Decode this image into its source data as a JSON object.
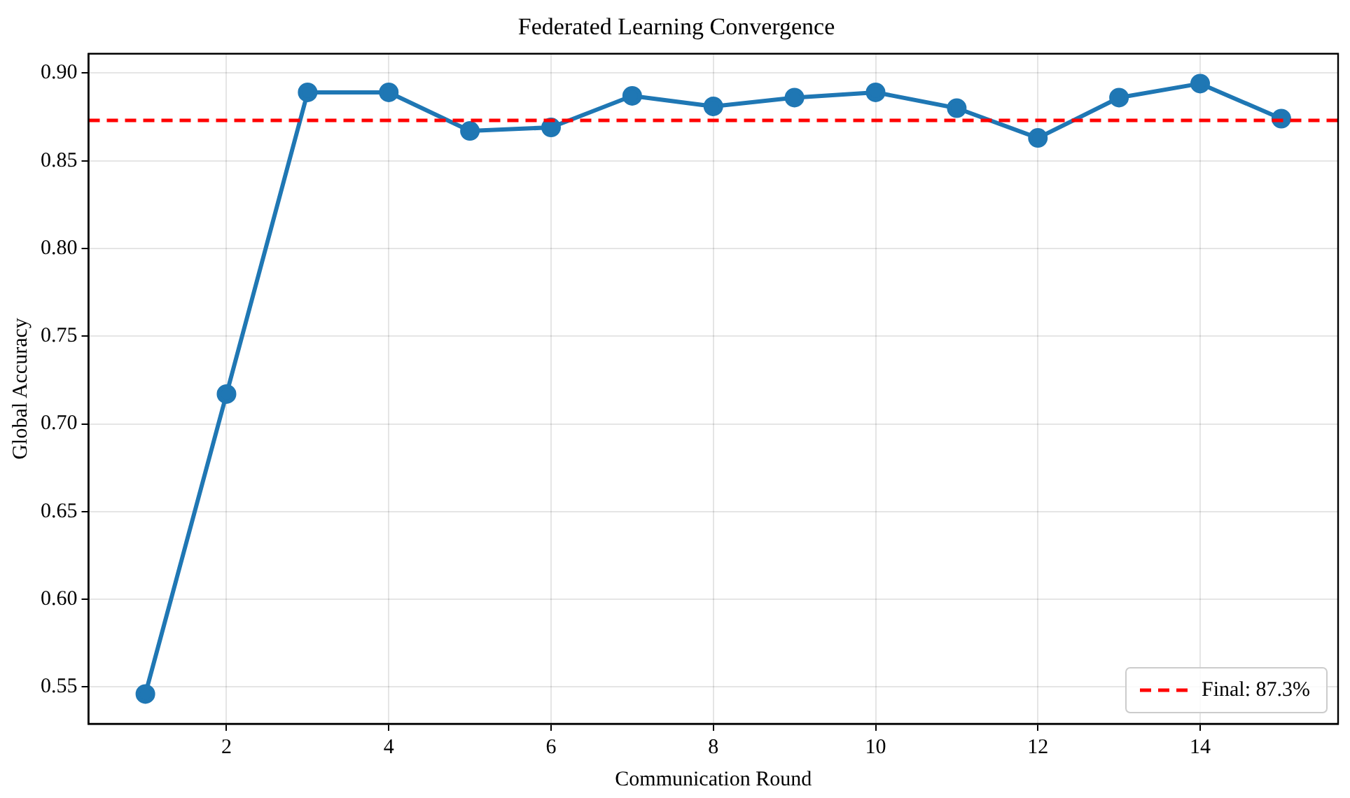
{
  "chart_data": {
    "type": "line",
    "title": "Federated Learning Convergence",
    "xlabel": "Communication Round",
    "ylabel": "Global Accuracy",
    "x": [
      1,
      2,
      3,
      4,
      5,
      6,
      7,
      8,
      9,
      10,
      11,
      12,
      13,
      14,
      15
    ],
    "series": [
      {
        "color": "#1f77b4",
        "values": [
          0.546,
          0.717,
          0.889,
          0.889,
          0.867,
          0.869,
          0.887,
          0.881,
          0.886,
          0.889,
          0.88,
          0.863,
          0.886,
          0.894,
          0.874
        ]
      }
    ],
    "xlim": [
      0.3,
      15.7
    ],
    "xticks": [
      2,
      4,
      6,
      8,
      10,
      12,
      14
    ],
    "ylim": [
      0.529,
      0.911
    ],
    "yticks": [
      {
        "value": 0.55,
        "label": "0.55"
      },
      {
        "value": 0.6,
        "label": "0.60"
      },
      {
        "value": 0.65,
        "label": "0.65"
      },
      {
        "value": 0.7,
        "label": "0.70"
      },
      {
        "value": 0.75,
        "label": "0.75"
      },
      {
        "value": 0.8,
        "label": "0.80"
      },
      {
        "value": 0.85,
        "label": "0.85"
      },
      {
        "value": 0.9,
        "label": "0.90"
      }
    ],
    "ref_lines": [
      {
        "axis": "y",
        "value": 0.873,
        "label": "Final: 87.3%",
        "color": "#ff0000",
        "line_style": "dashed"
      }
    ],
    "grid": true,
    "legend": "bottom right",
    "marker": "circle",
    "line_style": "solid"
  }
}
